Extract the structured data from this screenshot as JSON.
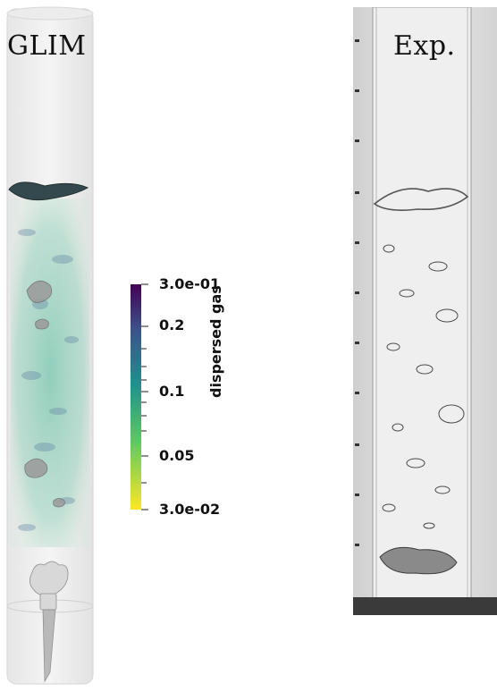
{
  "panels": {
    "simulation_label": "GLIM",
    "experiment_label": "Exp."
  },
  "colorbar": {
    "title": "dispersed gas",
    "scale": "log",
    "range": [
      0.03,
      0.3
    ],
    "colormap": "viridis",
    "tick_labels": {
      "max": "3.0e-01",
      "t02": "0.2",
      "t01": "0.1",
      "t005": "0.05",
      "min": "3.0e-02"
    }
  }
}
